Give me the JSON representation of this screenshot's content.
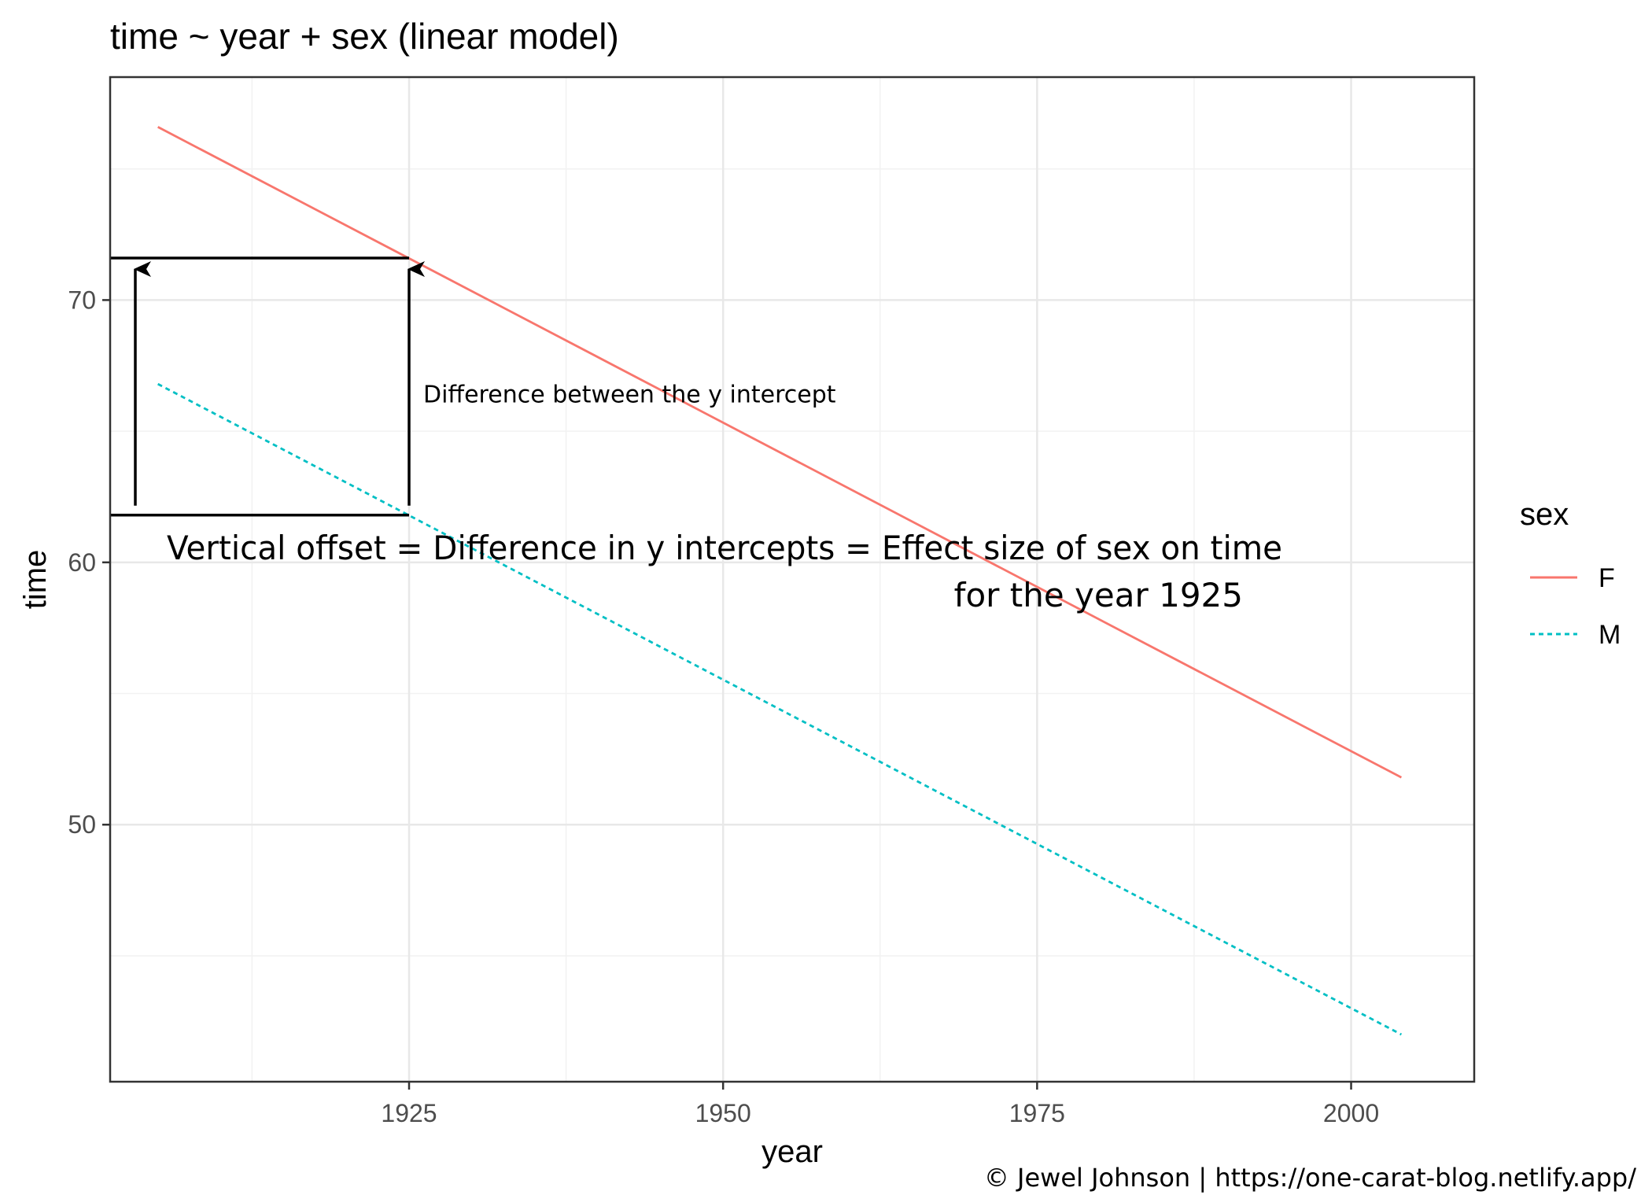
{
  "chart_data": {
    "type": "line",
    "title": "time ~ year + sex (linear model)",
    "xlabel": "year",
    "ylabel": "time",
    "xlim": [
      1901.2,
      2009.8
    ],
    "ylim": [
      40.2,
      78.5
    ],
    "x_ticks": [
      1925,
      1950,
      1975,
      2000
    ],
    "y_ticks": [
      50,
      60,
      70
    ],
    "grid": true,
    "legend": {
      "title": "sex",
      "position": "right"
    },
    "series": [
      {
        "name": "F",
        "color": "#F8766D",
        "linetype": "solid",
        "x": [
          1905,
          2004
        ],
        "values": [
          76.6,
          51.8
        ]
      },
      {
        "name": "M",
        "color": "#00BFC4",
        "linetype": "dashed",
        "x": [
          1905,
          2004
        ],
        "values": [
          66.8,
          42.0
        ]
      }
    ],
    "annotations": {
      "small_label": "Difference between the y intercept",
      "main_line1": "Vertical offset = Difference in y intercepts = Effect size of sex on time",
      "main_line2": "for the year 1925",
      "marker_year": 1925,
      "upper_y": 71.6,
      "lower_y": 61.8
    }
  },
  "credit": "© Jewel Johnson | https://one-carat-blog.netlify.app/"
}
